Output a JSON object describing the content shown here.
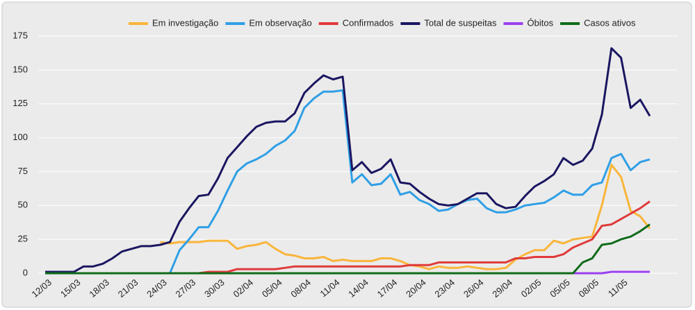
{
  "chart_data": {
    "type": "line",
    "categories": [
      "12/03",
      null,
      null,
      "15/03",
      null,
      null,
      "18/03",
      null,
      null,
      "21/03",
      null,
      null,
      "24/03",
      null,
      null,
      "27/03",
      null,
      null,
      "30/03",
      null,
      null,
      "02/04",
      null,
      null,
      "05/04",
      null,
      null,
      "08/04",
      null,
      null,
      "11/04",
      null,
      null,
      "14/04",
      null,
      null,
      "17/04",
      null,
      null,
      "20/04",
      null,
      null,
      "23/04",
      null,
      null,
      "26/04",
      null,
      null,
      "29/04",
      null,
      null,
      "02/05",
      null,
      null,
      "05/05",
      null,
      null,
      "08/05",
      null,
      null,
      "11/05",
      null,
      null,
      null
    ],
    "ylim": [
      0,
      175
    ],
    "yticks": [
      0,
      25,
      50,
      75,
      100,
      125,
      150,
      175
    ],
    "grid": true,
    "legend": "top",
    "series": [
      {
        "name": "Em investigação",
        "color": "#f9b53a",
        "values": [
          null,
          null,
          null,
          null,
          null,
          null,
          null,
          null,
          null,
          null,
          null,
          null,
          23,
          22,
          23,
          23,
          23,
          24,
          24,
          24,
          18,
          20,
          21,
          23,
          18,
          14,
          13,
          11,
          11,
          12,
          9,
          10,
          9,
          9,
          9,
          11,
          11,
          9,
          6,
          5,
          3,
          5,
          4,
          4,
          5,
          4,
          3,
          3,
          4,
          10,
          14,
          17,
          17,
          24,
          22,
          25,
          26,
          27,
          50,
          80,
          71,
          46,
          42,
          33
        ]
      },
      {
        "name": "Em observação",
        "color": "#2f9fe6",
        "values": [
          0,
          0,
          0,
          0,
          0,
          0,
          0,
          0,
          0,
          0,
          0,
          0,
          0,
          0,
          17,
          25,
          34,
          34,
          46,
          61,
          75,
          81,
          84,
          88,
          94,
          98,
          105,
          122,
          129,
          134,
          134,
          135,
          67,
          73,
          65,
          66,
          73,
          58,
          60,
          54,
          51,
          46,
          47,
          51,
          54,
          55,
          48,
          45,
          45,
          47,
          50,
          51,
          52,
          56,
          61,
          58,
          58,
          65,
          67,
          85,
          88,
          76,
          82,
          84
        ]
      },
      {
        "name": "Confirmados",
        "color": "#e03a3a",
        "values": [
          0,
          0,
          0,
          0,
          0,
          0,
          0,
          0,
          0,
          0,
          0,
          0,
          0,
          0,
          0,
          0,
          0,
          1,
          1,
          1,
          3,
          3,
          3,
          3,
          3,
          4,
          5,
          5,
          5,
          5,
          5,
          5,
          5,
          5,
          5,
          5,
          5,
          5,
          6,
          6,
          6,
          8,
          8,
          8,
          8,
          8,
          8,
          8,
          8,
          11,
          11,
          12,
          12,
          12,
          14,
          19,
          22,
          25,
          35,
          36,
          40,
          44,
          48,
          53
        ]
      },
      {
        "name": "Total de suspeitas",
        "color": "#1a1660",
        "values": [
          1,
          1,
          1,
          1,
          5,
          5,
          7,
          11,
          16,
          18,
          20,
          20,
          21,
          23,
          38,
          48,
          57,
          58,
          70,
          85,
          93,
          101,
          108,
          111,
          112,
          112,
          118,
          133,
          140,
          146,
          143,
          145,
          76,
          82,
          74,
          77,
          84,
          67,
          66,
          60,
          55,
          51,
          50,
          51,
          55,
          59,
          59,
          51,
          48,
          49,
          57,
          64,
          68,
          73,
          85,
          80,
          83,
          92,
          117,
          166,
          159,
          122,
          128,
          116
        ]
      },
      {
        "name": "Óbitos",
        "color": "#9b3ff0",
        "values": [
          0,
          0,
          0,
          0,
          0,
          0,
          0,
          0,
          0,
          0,
          0,
          0,
          0,
          0,
          0,
          0,
          0,
          0,
          0,
          0,
          0,
          0,
          0,
          0,
          0,
          0,
          0,
          0,
          0,
          0,
          0,
          0,
          0,
          0,
          0,
          0,
          0,
          0,
          0,
          0,
          0,
          0,
          0,
          0,
          0,
          0,
          0,
          0,
          0,
          0,
          0,
          0,
          0,
          0,
          0,
          0,
          0,
          0,
          0,
          1,
          1,
          1,
          1,
          1
        ]
      },
      {
        "name": "Casos ativos",
        "color": "#106b1a",
        "values": [
          0,
          0,
          0,
          0,
          0,
          0,
          0,
          0,
          0,
          0,
          0,
          0,
          0,
          0,
          0,
          0,
          0,
          0,
          0,
          0,
          0,
          0,
          0,
          0,
          0,
          0,
          0,
          0,
          0,
          0,
          0,
          0,
          0,
          0,
          0,
          0,
          0,
          0,
          0,
          0,
          0,
          0,
          0,
          0,
          0,
          0,
          0,
          0,
          0,
          0,
          0,
          0,
          0,
          0,
          0,
          0,
          8,
          11,
          21,
          22,
          25,
          27,
          31,
          36
        ]
      }
    ]
  }
}
